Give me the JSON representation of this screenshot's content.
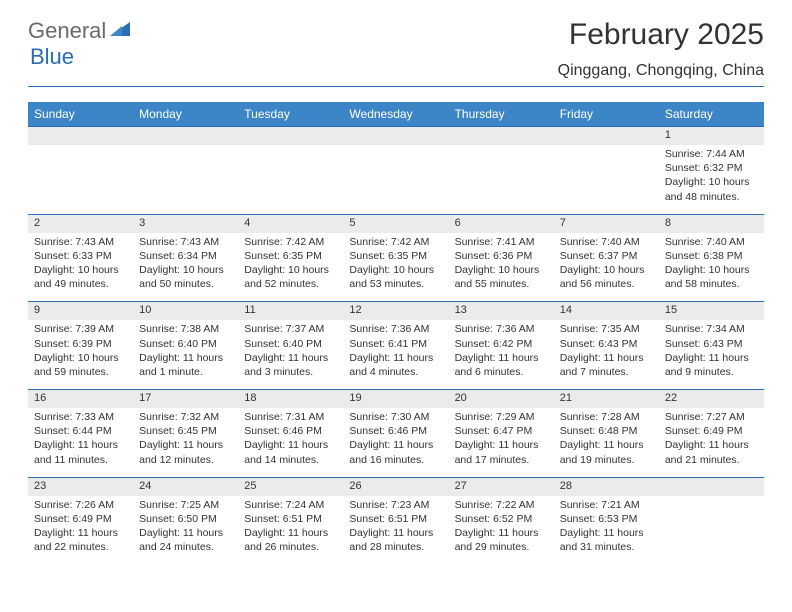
{
  "logo": {
    "text1": "General",
    "text2": "Blue"
  },
  "title": "February 2025",
  "location": "Qinggang, Chongqing, China",
  "colors": {
    "header_bg": "#3c85c6",
    "header_text": "#ffffff",
    "rule": "#2a6db5",
    "daynum_bg": "#ebebeb",
    "body_text": "#333333",
    "logo_gray": "#6b6b6b",
    "logo_blue": "#2a6db5"
  },
  "columns": [
    "Sunday",
    "Monday",
    "Tuesday",
    "Wednesday",
    "Thursday",
    "Friday",
    "Saturday"
  ],
  "weeks": [
    [
      {
        "n": "",
        "sr": "",
        "ss": "",
        "dl": ""
      },
      {
        "n": "",
        "sr": "",
        "ss": "",
        "dl": ""
      },
      {
        "n": "",
        "sr": "",
        "ss": "",
        "dl": ""
      },
      {
        "n": "",
        "sr": "",
        "ss": "",
        "dl": ""
      },
      {
        "n": "",
        "sr": "",
        "ss": "",
        "dl": ""
      },
      {
        "n": "",
        "sr": "",
        "ss": "",
        "dl": ""
      },
      {
        "n": "1",
        "sr": "Sunrise: 7:44 AM",
        "ss": "Sunset: 6:32 PM",
        "dl": "Daylight: 10 hours and 48 minutes."
      }
    ],
    [
      {
        "n": "2",
        "sr": "Sunrise: 7:43 AM",
        "ss": "Sunset: 6:33 PM",
        "dl": "Daylight: 10 hours and 49 minutes."
      },
      {
        "n": "3",
        "sr": "Sunrise: 7:43 AM",
        "ss": "Sunset: 6:34 PM",
        "dl": "Daylight: 10 hours and 50 minutes."
      },
      {
        "n": "4",
        "sr": "Sunrise: 7:42 AM",
        "ss": "Sunset: 6:35 PM",
        "dl": "Daylight: 10 hours and 52 minutes."
      },
      {
        "n": "5",
        "sr": "Sunrise: 7:42 AM",
        "ss": "Sunset: 6:35 PM",
        "dl": "Daylight: 10 hours and 53 minutes."
      },
      {
        "n": "6",
        "sr": "Sunrise: 7:41 AM",
        "ss": "Sunset: 6:36 PM",
        "dl": "Daylight: 10 hours and 55 minutes."
      },
      {
        "n": "7",
        "sr": "Sunrise: 7:40 AM",
        "ss": "Sunset: 6:37 PM",
        "dl": "Daylight: 10 hours and 56 minutes."
      },
      {
        "n": "8",
        "sr": "Sunrise: 7:40 AM",
        "ss": "Sunset: 6:38 PM",
        "dl": "Daylight: 10 hours and 58 minutes."
      }
    ],
    [
      {
        "n": "9",
        "sr": "Sunrise: 7:39 AM",
        "ss": "Sunset: 6:39 PM",
        "dl": "Daylight: 10 hours and 59 minutes."
      },
      {
        "n": "10",
        "sr": "Sunrise: 7:38 AM",
        "ss": "Sunset: 6:40 PM",
        "dl": "Daylight: 11 hours and 1 minute."
      },
      {
        "n": "11",
        "sr": "Sunrise: 7:37 AM",
        "ss": "Sunset: 6:40 PM",
        "dl": "Daylight: 11 hours and 3 minutes."
      },
      {
        "n": "12",
        "sr": "Sunrise: 7:36 AM",
        "ss": "Sunset: 6:41 PM",
        "dl": "Daylight: 11 hours and 4 minutes."
      },
      {
        "n": "13",
        "sr": "Sunrise: 7:36 AM",
        "ss": "Sunset: 6:42 PM",
        "dl": "Daylight: 11 hours and 6 minutes."
      },
      {
        "n": "14",
        "sr": "Sunrise: 7:35 AM",
        "ss": "Sunset: 6:43 PM",
        "dl": "Daylight: 11 hours and 7 minutes."
      },
      {
        "n": "15",
        "sr": "Sunrise: 7:34 AM",
        "ss": "Sunset: 6:43 PM",
        "dl": "Daylight: 11 hours and 9 minutes."
      }
    ],
    [
      {
        "n": "16",
        "sr": "Sunrise: 7:33 AM",
        "ss": "Sunset: 6:44 PM",
        "dl": "Daylight: 11 hours and 11 minutes."
      },
      {
        "n": "17",
        "sr": "Sunrise: 7:32 AM",
        "ss": "Sunset: 6:45 PM",
        "dl": "Daylight: 11 hours and 12 minutes."
      },
      {
        "n": "18",
        "sr": "Sunrise: 7:31 AM",
        "ss": "Sunset: 6:46 PM",
        "dl": "Daylight: 11 hours and 14 minutes."
      },
      {
        "n": "19",
        "sr": "Sunrise: 7:30 AM",
        "ss": "Sunset: 6:46 PM",
        "dl": "Daylight: 11 hours and 16 minutes."
      },
      {
        "n": "20",
        "sr": "Sunrise: 7:29 AM",
        "ss": "Sunset: 6:47 PM",
        "dl": "Daylight: 11 hours and 17 minutes."
      },
      {
        "n": "21",
        "sr": "Sunrise: 7:28 AM",
        "ss": "Sunset: 6:48 PM",
        "dl": "Daylight: 11 hours and 19 minutes."
      },
      {
        "n": "22",
        "sr": "Sunrise: 7:27 AM",
        "ss": "Sunset: 6:49 PM",
        "dl": "Daylight: 11 hours and 21 minutes."
      }
    ],
    [
      {
        "n": "23",
        "sr": "Sunrise: 7:26 AM",
        "ss": "Sunset: 6:49 PM",
        "dl": "Daylight: 11 hours and 22 minutes."
      },
      {
        "n": "24",
        "sr": "Sunrise: 7:25 AM",
        "ss": "Sunset: 6:50 PM",
        "dl": "Daylight: 11 hours and 24 minutes."
      },
      {
        "n": "25",
        "sr": "Sunrise: 7:24 AM",
        "ss": "Sunset: 6:51 PM",
        "dl": "Daylight: 11 hours and 26 minutes."
      },
      {
        "n": "26",
        "sr": "Sunrise: 7:23 AM",
        "ss": "Sunset: 6:51 PM",
        "dl": "Daylight: 11 hours and 28 minutes."
      },
      {
        "n": "27",
        "sr": "Sunrise: 7:22 AM",
        "ss": "Sunset: 6:52 PM",
        "dl": "Daylight: 11 hours and 29 minutes."
      },
      {
        "n": "28",
        "sr": "Sunrise: 7:21 AM",
        "ss": "Sunset: 6:53 PM",
        "dl": "Daylight: 11 hours and 31 minutes."
      },
      {
        "n": "",
        "sr": "",
        "ss": "",
        "dl": ""
      }
    ]
  ]
}
